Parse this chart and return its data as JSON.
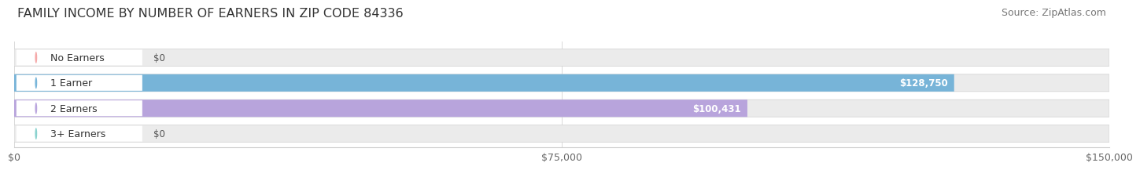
{
  "title": "FAMILY INCOME BY NUMBER OF EARNERS IN ZIP CODE 84336",
  "source": "Source: ZipAtlas.com",
  "categories": [
    "No Earners",
    "1 Earner",
    "2 Earners",
    "3+ Earners"
  ],
  "values": [
    0,
    128750,
    100431,
    0
  ],
  "bar_colors": [
    "#f4a0a0",
    "#6aaed6",
    "#b39ddb",
    "#7ececa"
  ],
  "value_labels": [
    "$0",
    "$128,750",
    "$100,431",
    "$0"
  ],
  "xlim": [
    0,
    150000
  ],
  "xticks": [
    0,
    75000,
    150000
  ],
  "xtick_labels": [
    "$0",
    "$75,000",
    "$150,000"
  ],
  "background_color": "#ffffff",
  "bar_bg_color": "#ebebeb",
  "title_fontsize": 11.5,
  "source_fontsize": 9,
  "label_fontsize": 9,
  "value_fontsize": 8.5
}
